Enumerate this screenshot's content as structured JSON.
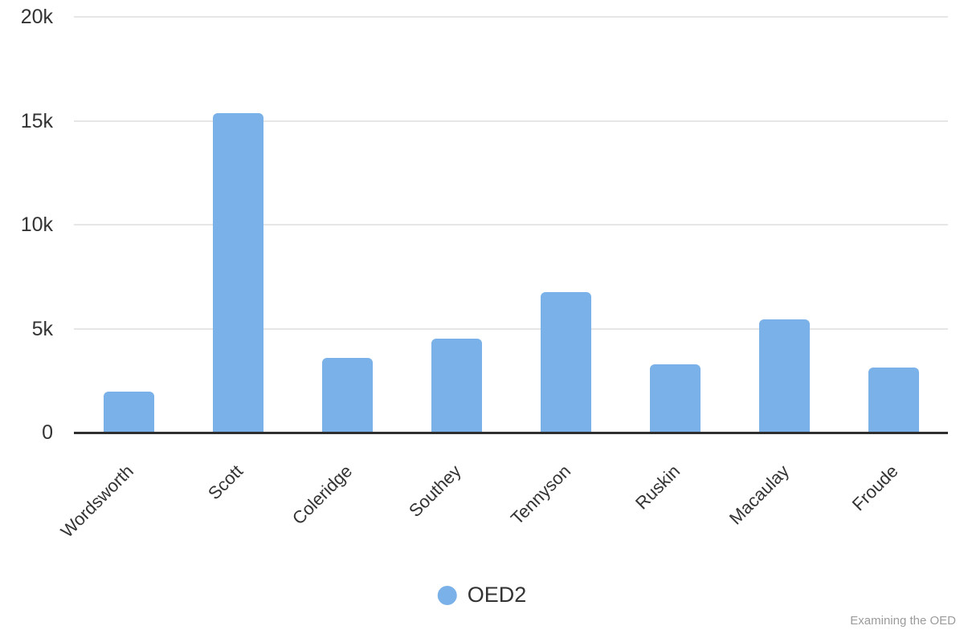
{
  "chart_data": {
    "type": "bar",
    "title": "",
    "xlabel": "",
    "ylabel": "",
    "categories": [
      "Wordsworth",
      "Scott",
      "Coleridge",
      "Southey",
      "Tennyson",
      "Ruskin",
      "Macaulay",
      "Froude"
    ],
    "series": [
      {
        "name": "OED2",
        "color": "#7ab1e8",
        "values": [
          1980,
          15360,
          3600,
          4510,
          6760,
          3280,
          5440,
          3120
        ]
      }
    ],
    "ylim": [
      0,
      20000
    ],
    "ytick_values": [
      0,
      5000,
      10000,
      15000,
      20000
    ],
    "ytick_labels": [
      "0",
      "5k",
      "10k",
      "15k",
      "20k"
    ],
    "grid": true,
    "legend_position": "bottom-center"
  },
  "legend": {
    "label": "OED2"
  },
  "credits": {
    "text": "Examining the OED"
  },
  "colors": {
    "bar": "#7ab1e8",
    "axis_line": "#2f2f2f",
    "gridline": "#e6e6e6",
    "tick_text": "#333333",
    "credits_text": "#9b9b9b"
  }
}
